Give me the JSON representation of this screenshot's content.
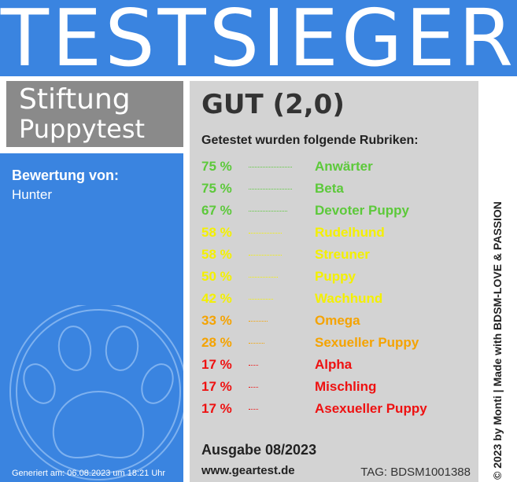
{
  "header": {
    "title": "TESTSIEGER"
  },
  "brand": {
    "line1": "Stiftung",
    "line2": "Puppytest"
  },
  "rating": {
    "label": "Bewertung von:",
    "value": "Hunter"
  },
  "generated": "Generiert am: 06.08.2023 um 18:21 Uhr",
  "grade": "GUT (2,0)",
  "intro": "Getestet wurden folgende Rubriken:",
  "rows": [
    {
      "percent": "75 %",
      "name": "Anwärter",
      "value": 75,
      "color": "#5cc93a"
    },
    {
      "percent": "75 %",
      "name": "Beta",
      "value": 75,
      "color": "#5cc93a"
    },
    {
      "percent": "67 %",
      "name": "Devoter Puppy",
      "value": 67,
      "color": "#5cc93a"
    },
    {
      "percent": "58 %",
      "name": "Rudelhund",
      "value": 58,
      "color": "#f4f000"
    },
    {
      "percent": "58 %",
      "name": "Streuner",
      "value": 58,
      "color": "#f4f000"
    },
    {
      "percent": "50 %",
      "name": "Puppy",
      "value": 50,
      "color": "#f4f000"
    },
    {
      "percent": "42 %",
      "name": "Wachhund",
      "value": 42,
      "color": "#f4f000"
    },
    {
      "percent": "33 %",
      "name": "Omega",
      "value": 33,
      "color": "#f5a300"
    },
    {
      "percent": "28 %",
      "name": "Sexueller Puppy",
      "value": 28,
      "color": "#f5a300"
    },
    {
      "percent": "17 %",
      "name": "Alpha",
      "value": 17,
      "color": "#ee1111"
    },
    {
      "percent": "17 %",
      "name": "Mischling",
      "value": 17,
      "color": "#ee1111"
    },
    {
      "percent": "17 %",
      "name": "Asexueller Puppy",
      "value": 17,
      "color": "#ee1111"
    }
  ],
  "issue": "Ausgabe 08/2023",
  "website": "www.geartest.de",
  "tag": "TAG: BDSM1001388",
  "credit": "© 2023 by Monti | Made with BDSM-LOVE & PASSION",
  "colors": {
    "accent": "#3a84e0",
    "panel": "#d3d3d3",
    "brand_box": "#8a8a8a"
  }
}
